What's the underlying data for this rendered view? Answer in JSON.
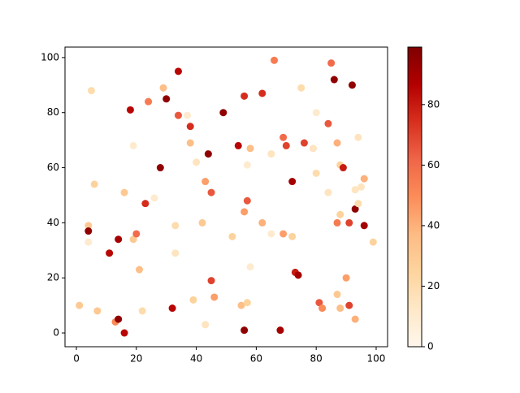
{
  "chart_data": {
    "type": "scatter",
    "x": [
      1,
      4,
      4,
      4,
      5,
      6,
      7,
      11,
      13,
      14,
      14,
      16,
      16,
      18,
      19,
      19,
      20,
      21,
      22,
      23,
      24,
      26,
      28,
      29,
      30,
      32,
      33,
      33,
      34,
      34,
      37,
      38,
      38,
      39,
      40,
      42,
      43,
      43,
      44,
      45,
      45,
      46,
      49,
      52,
      54,
      55,
      56,
      56,
      56,
      57,
      57,
      57,
      58,
      58,
      62,
      62,
      65,
      65,
      66,
      68,
      69,
      69,
      70,
      72,
      72,
      73,
      74,
      75,
      76,
      79,
      80,
      80,
      81,
      82,
      84,
      84,
      85,
      86,
      87,
      87,
      87,
      88,
      88,
      88,
      89,
      90,
      91,
      91,
      92,
      93,
      93,
      93,
      94,
      94,
      95,
      96,
      96,
      99
    ],
    "values": [
      10,
      39,
      37,
      33,
      88,
      54,
      8,
      29,
      4,
      5,
      34,
      51,
      0,
      81,
      68,
      34,
      36,
      23,
      8,
      47,
      84,
      49,
      60,
      89,
      85,
      9,
      39,
      29,
      95,
      79,
      79,
      75,
      69,
      12,
      62,
      40,
      3,
      55,
      65,
      51,
      19,
      13,
      80,
      35,
      68,
      10,
      44,
      86,
      1,
      48,
      61,
      11,
      24,
      67,
      87,
      40,
      36,
      65,
      99,
      1,
      71,
      36,
      68,
      35,
      55,
      22,
      21,
      89,
      69,
      67,
      58,
      80,
      11,
      9,
      51,
      76,
      98,
      92,
      69,
      40,
      14,
      61,
      9,
      43,
      60,
      20,
      40,
      10,
      90,
      52,
      45,
      5,
      71,
      47,
      53,
      56,
      39,
      33
    ],
    "c": [
      30,
      30,
      95,
      10,
      20,
      25,
      30,
      85,
      50,
      95,
      90,
      30,
      85,
      85,
      10,
      30,
      60,
      35,
      20,
      75,
      55,
      10,
      95,
      35,
      95,
      85,
      20,
      15,
      85,
      65,
      10,
      75,
      35,
      25,
      15,
      30,
      15,
      45,
      95,
      65,
      70,
      45,
      95,
      25,
      85,
      35,
      45,
      75,
      95,
      65,
      10,
      25,
      10,
      35,
      75,
      40,
      10,
      15,
      55,
      90,
      60,
      45,
      70,
      25,
      90,
      80,
      90,
      20,
      70,
      15,
      20,
      10,
      65,
      50,
      15,
      65,
      60,
      95,
      40,
      55,
      30,
      25,
      35,
      25,
      80,
      45,
      70,
      70,
      95,
      15,
      95,
      40,
      15,
      20,
      15,
      40,
      90,
      25
    ],
    "colormap": [
      "#fff7ec",
      "#fee8c8",
      "#fdd49e",
      "#fdbb84",
      "#fc8d59",
      "#ef6548",
      "#d7301f",
      "#b30000",
      "#7f0000"
    ],
    "clim": [
      0,
      99
    ],
    "xlim": [
      -3.8,
      103.8
    ],
    "xticks": [
      0,
      20,
      40,
      60,
      80,
      100
    ],
    "ylim": [
      -5,
      103.8
    ],
    "yticks": [
      0,
      20,
      40,
      60,
      80,
      100
    ],
    "cticks": [
      0,
      20,
      40,
      60,
      80
    ]
  }
}
